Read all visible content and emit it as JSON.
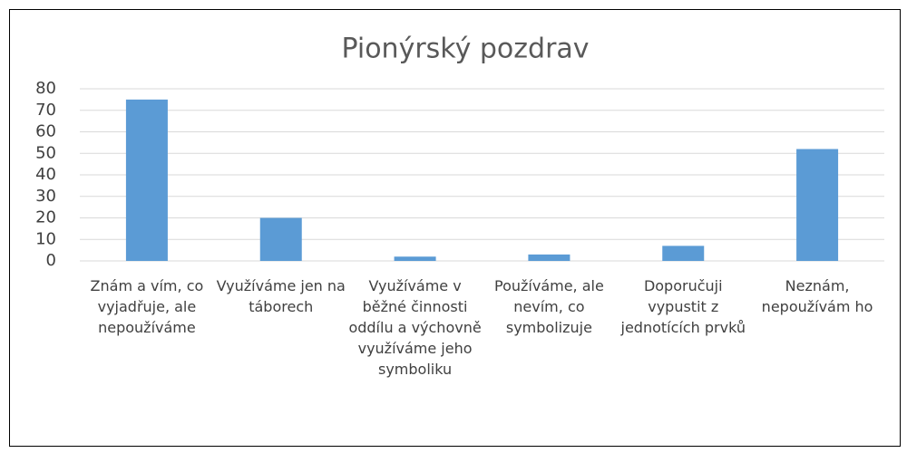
{
  "chart_data": {
    "type": "bar",
    "title": "Pionýrský pozdrav",
    "categories": [
      "Znám a vím, co vyjadřuje, ale nepoužíváme",
      "Využíváme jen na táborech",
      "Využíváme v běžné činnosti oddílu a výchovně využíváme jeho symboliku",
      "Používáme, ale nevím, co symbolizuje",
      "Doporučuji vypustit z jednotících prvků",
      "Neznám, nepoužívám ho"
    ],
    "values": [
      75,
      20,
      2,
      3,
      7,
      52
    ],
    "color": "#5b9bd5",
    "ylim": [
      0,
      80
    ],
    "yticks": [
      0,
      10,
      20,
      30,
      40,
      50,
      60,
      70,
      80
    ],
    "grid": true
  }
}
